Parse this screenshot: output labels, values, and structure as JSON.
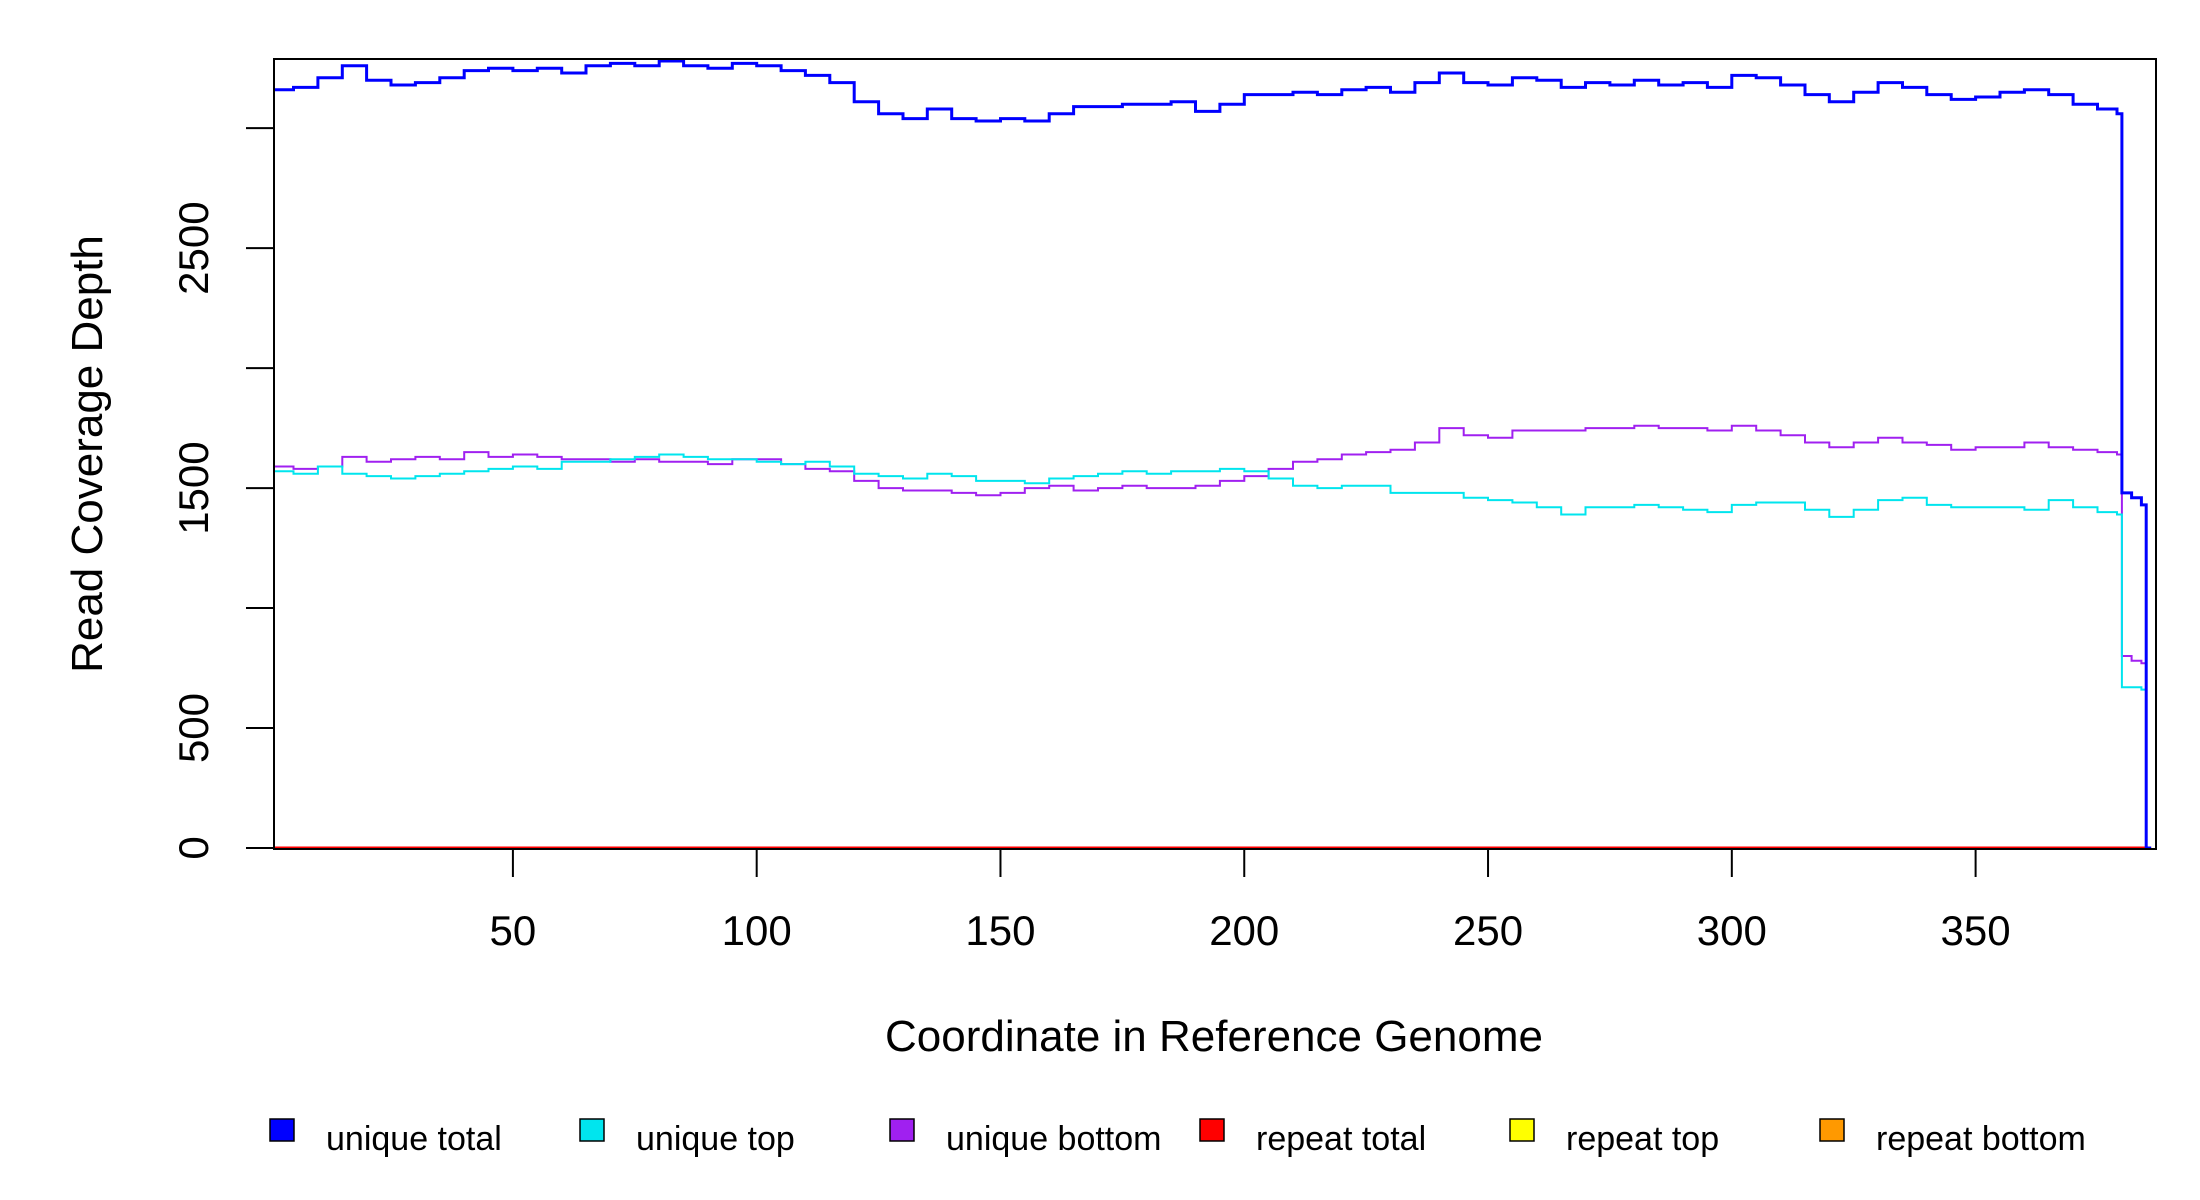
{
  "chart_data": {
    "type": "line",
    "xlabel": "Coordinate in Reference Genome",
    "ylabel": "Read Coverage Depth",
    "xlim": [
      1,
      387
    ],
    "ylim": [
      0,
      3280
    ],
    "x_ticks": [
      50,
      100,
      150,
      200,
      250,
      300,
      350
    ],
    "y_ticks": [
      0,
      500,
      1000,
      1500,
      2000,
      2500,
      3000
    ],
    "y_tick_labels": [
      "0",
      "500",
      "",
      "1500",
      "",
      "2500",
      ""
    ],
    "grid": false,
    "legend_position": "bottom",
    "series": [
      {
        "name": "unique total",
        "color": "#0000ff",
        "x": [
          1,
          5,
          10,
          15,
          20,
          25,
          30,
          35,
          40,
          45,
          50,
          55,
          60,
          65,
          70,
          75,
          80,
          85,
          90,
          95,
          100,
          105,
          110,
          115,
          120,
          125,
          130,
          135,
          140,
          145,
          150,
          155,
          160,
          165,
          170,
          175,
          180,
          185,
          190,
          195,
          200,
          205,
          210,
          215,
          220,
          225,
          230,
          235,
          240,
          245,
          250,
          255,
          260,
          265,
          270,
          275,
          280,
          285,
          290,
          295,
          300,
          305,
          310,
          315,
          320,
          325,
          330,
          335,
          340,
          345,
          350,
          355,
          360,
          365,
          370,
          375,
          379,
          380,
          382,
          384,
          385,
          386
        ],
        "y": [
          3160,
          3170,
          3210,
          3260,
          3200,
          3180,
          3190,
          3210,
          3240,
          3250,
          3240,
          3250,
          3230,
          3260,
          3270,
          3260,
          3280,
          3260,
          3250,
          3270,
          3260,
          3240,
          3220,
          3190,
          3110,
          3060,
          3040,
          3080,
          3040,
          3030,
          3040,
          3030,
          3060,
          3090,
          3090,
          3100,
          3100,
          3110,
          3070,
          3100,
          3140,
          3140,
          3150,
          3140,
          3160,
          3170,
          3150,
          3190,
          3230,
          3190,
          3180,
          3210,
          3200,
          3170,
          3190,
          3180,
          3200,
          3180,
          3190,
          3170,
          3220,
          3210,
          3180,
          3140,
          3110,
          3150,
          3190,
          3170,
          3140,
          3120,
          3130,
          3150,
          3160,
          3140,
          3100,
          3080,
          3060,
          1480,
          1460,
          1430,
          0,
          0
        ]
      },
      {
        "name": "unique top",
        "color": "#00e5ee",
        "x": [
          1,
          5,
          10,
          15,
          20,
          25,
          30,
          35,
          40,
          45,
          50,
          55,
          60,
          65,
          70,
          75,
          80,
          85,
          90,
          95,
          100,
          105,
          110,
          115,
          120,
          125,
          130,
          135,
          140,
          145,
          150,
          155,
          160,
          165,
          170,
          175,
          180,
          185,
          190,
          195,
          200,
          205,
          210,
          215,
          220,
          225,
          230,
          235,
          240,
          245,
          250,
          255,
          260,
          265,
          270,
          275,
          280,
          285,
          290,
          295,
          300,
          305,
          310,
          315,
          320,
          325,
          330,
          335,
          340,
          345,
          350,
          355,
          360,
          365,
          370,
          375,
          379,
          380,
          382,
          384,
          385,
          386
        ],
        "y": [
          1570,
          1560,
          1590,
          1560,
          1550,
          1540,
          1550,
          1560,
          1570,
          1580,
          1590,
          1580,
          1610,
          1610,
          1620,
          1630,
          1640,
          1630,
          1620,
          1620,
          1610,
          1600,
          1610,
          1590,
          1560,
          1550,
          1540,
          1560,
          1550,
          1530,
          1530,
          1520,
          1540,
          1550,
          1560,
          1570,
          1560,
          1570,
          1570,
          1580,
          1570,
          1540,
          1510,
          1500,
          1510,
          1510,
          1480,
          1480,
          1480,
          1460,
          1450,
          1440,
          1420,
          1390,
          1420,
          1420,
          1430,
          1420,
          1410,
          1400,
          1430,
          1440,
          1440,
          1410,
          1380,
          1410,
          1450,
          1460,
          1430,
          1420,
          1420,
          1420,
          1410,
          1450,
          1420,
          1400,
          1390,
          670,
          670,
          660,
          0,
          0
        ]
      },
      {
        "name": "unique bottom",
        "color": "#a020f0",
        "x": [
          1,
          5,
          10,
          15,
          20,
          25,
          30,
          35,
          40,
          45,
          50,
          55,
          60,
          65,
          70,
          75,
          80,
          85,
          90,
          95,
          100,
          105,
          110,
          115,
          120,
          125,
          130,
          135,
          140,
          145,
          150,
          155,
          160,
          165,
          170,
          175,
          180,
          185,
          190,
          195,
          200,
          205,
          210,
          215,
          220,
          225,
          230,
          235,
          240,
          245,
          250,
          255,
          260,
          265,
          270,
          275,
          280,
          285,
          290,
          295,
          300,
          305,
          310,
          315,
          320,
          325,
          330,
          335,
          340,
          345,
          350,
          355,
          360,
          365,
          370,
          375,
          379,
          380,
          382,
          384,
          385,
          386
        ],
        "y": [
          1590,
          1580,
          1590,
          1630,
          1610,
          1620,
          1630,
          1620,
          1650,
          1630,
          1640,
          1630,
          1620,
          1620,
          1610,
          1620,
          1610,
          1610,
          1600,
          1620,
          1620,
          1600,
          1580,
          1570,
          1530,
          1500,
          1490,
          1490,
          1480,
          1470,
          1480,
          1500,
          1510,
          1490,
          1500,
          1510,
          1500,
          1500,
          1510,
          1530,
          1550,
          1580,
          1610,
          1620,
          1640,
          1650,
          1660,
          1690,
          1750,
          1720,
          1710,
          1740,
          1740,
          1740,
          1750,
          1750,
          1760,
          1750,
          1750,
          1740,
          1760,
          1740,
          1720,
          1690,
          1670,
          1690,
          1710,
          1690,
          1680,
          1660,
          1670,
          1670,
          1690,
          1670,
          1660,
          1650,
          1640,
          800,
          780,
          770,
          0,
          0
        ]
      },
      {
        "name": "repeat total",
        "color": "#ff0000",
        "x": [
          1,
          386
        ],
        "y": [
          0,
          0
        ]
      },
      {
        "name": "repeat top",
        "color": "#ffff00",
        "x": [
          1,
          386
        ],
        "y": [
          0,
          0
        ]
      },
      {
        "name": "repeat bottom",
        "color": "#ff9900",
        "x": [
          1,
          386
        ],
        "y": [
          0,
          0
        ]
      }
    ]
  }
}
